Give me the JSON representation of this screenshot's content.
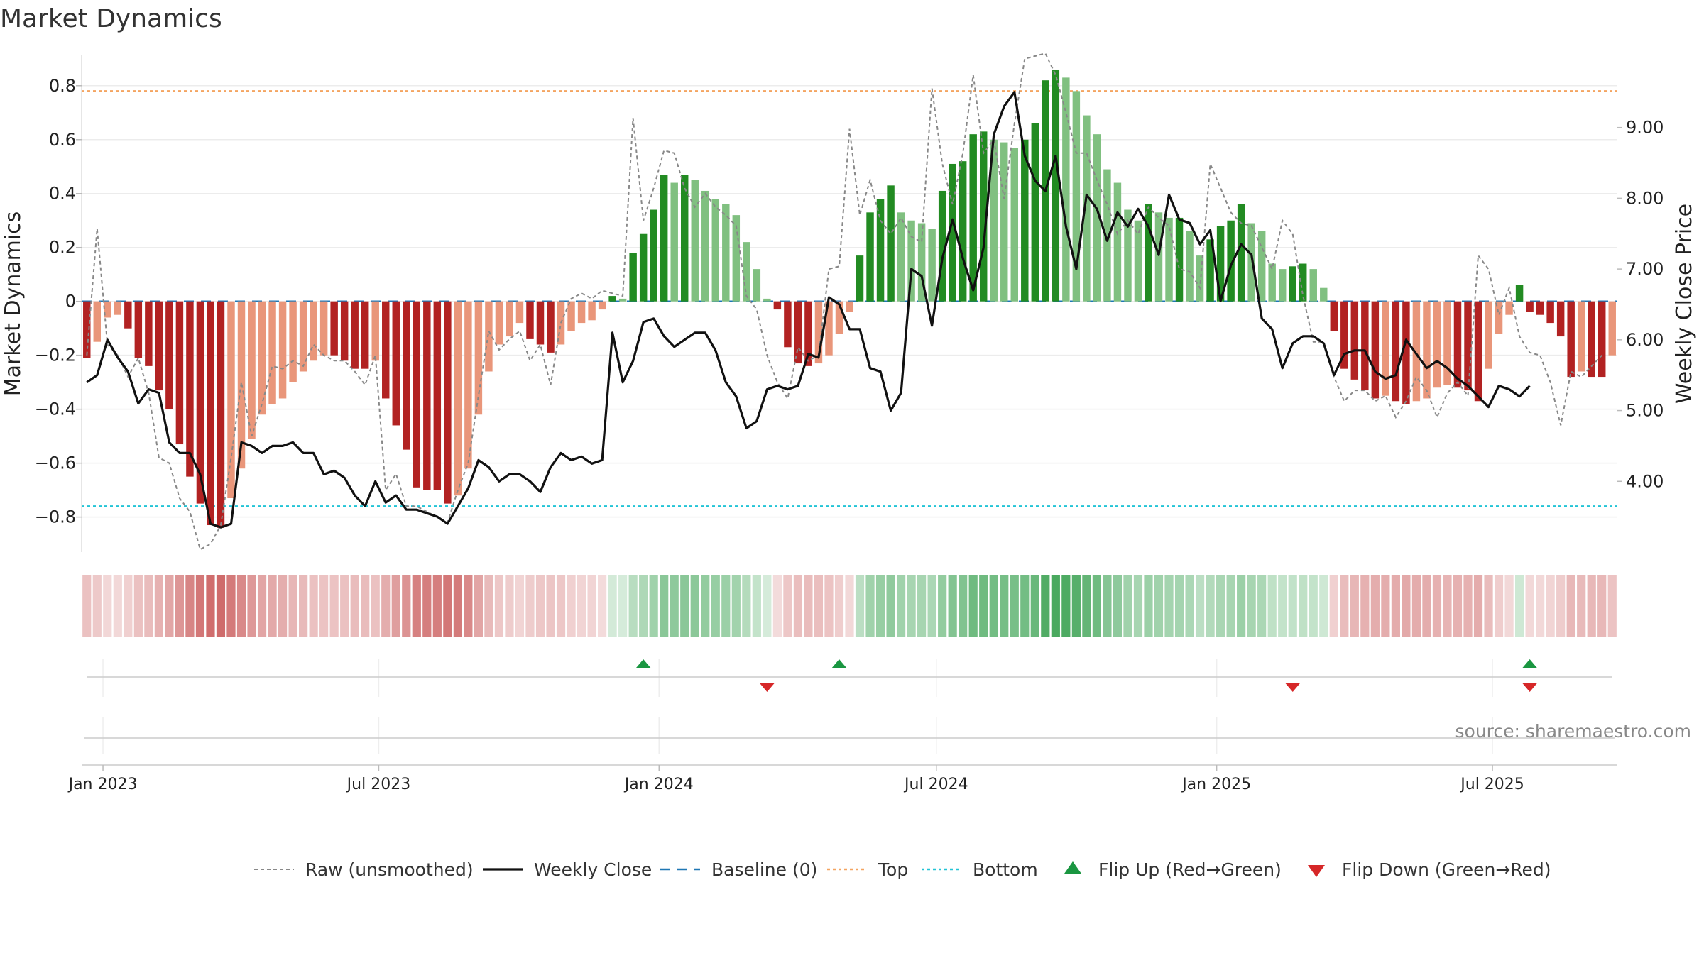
{
  "chart_data": {
    "type": "bar",
    "title": "Market Dynamics",
    "ylabel_left": "Market Dynamics",
    "ylabel_right": "Weekly Close Price",
    "source": "source: sharemaestro.com",
    "ylim_left": [
      -0.93,
      0.96
    ],
    "ylim_right": [
      3.0,
      10.2
    ],
    "yticks_left": [
      {
        "value": 0.8,
        "label": "0.8"
      },
      {
        "value": 0.6,
        "label": "0.6"
      },
      {
        "value": 0.4,
        "label": "0.4"
      },
      {
        "value": 0.2,
        "label": "0.2"
      },
      {
        "value": 0.0,
        "label": "0"
      },
      {
        "value": -0.2,
        "label": "−0.2"
      },
      {
        "value": -0.4,
        "label": "−0.4"
      },
      {
        "value": -0.6,
        "label": "−0.6"
      },
      {
        "value": -0.8,
        "label": "−0.8"
      }
    ],
    "yticks_right": [
      {
        "value": 9.0,
        "label": "9.00"
      },
      {
        "value": 8.0,
        "label": "8.00"
      },
      {
        "value": 7.0,
        "label": "7.00"
      },
      {
        "value": 6.0,
        "label": "6.00"
      },
      {
        "value": 5.0,
        "label": "5.00"
      },
      {
        "value": 4.0,
        "label": "4.00"
      }
    ],
    "xticks": [
      {
        "date": "2023-01-01",
        "label": "Jan 2023"
      },
      {
        "date": "2023-07-01",
        "label": "Jul 2023"
      },
      {
        "date": "2024-01-01",
        "label": "Jan 2024"
      },
      {
        "date": "2024-07-01",
        "label": "Jul 2024"
      },
      {
        "date": "2025-01-01",
        "label": "Jan 2025"
      },
      {
        "date": "2025-07-01",
        "label": "Jul 2025"
      }
    ],
    "x_start": "2022-12-18",
    "x_end": "2025-09-21",
    "top_line": 0.78,
    "bottom_line": -0.76,
    "baseline": 0,
    "grid": true,
    "legend_position": "bottom",
    "series": [
      {
        "name": "Market Dynamics",
        "values": [
          -0.21,
          -0.15,
          -0.06,
          -0.05,
          -0.1,
          -0.21,
          -0.24,
          -0.33,
          -0.4,
          -0.53,
          -0.65,
          -0.75,
          -0.83,
          -0.84,
          -0.73,
          -0.62,
          -0.51,
          -0.42,
          -0.38,
          -0.36,
          -0.3,
          -0.26,
          -0.22,
          -0.2,
          -0.2,
          -0.22,
          -0.25,
          -0.25,
          -0.22,
          -0.36,
          -0.46,
          -0.55,
          -0.69,
          -0.7,
          -0.7,
          -0.75,
          -0.72,
          -0.62,
          -0.42,
          -0.26,
          -0.16,
          -0.13,
          -0.08,
          -0.14,
          -0.16,
          -0.19,
          -0.16,
          -0.11,
          -0.08,
          -0.07,
          -0.03,
          0.02,
          0.01,
          0.18,
          0.25,
          0.34,
          0.47,
          0.44,
          0.47,
          0.45,
          0.41,
          0.38,
          0.36,
          0.32,
          0.22,
          0.12,
          0.01,
          -0.03,
          -0.17,
          -0.23,
          -0.24,
          -0.23,
          -0.2,
          -0.12,
          -0.04,
          0.17,
          0.33,
          0.38,
          0.43,
          0.33,
          0.3,
          0.29,
          0.27,
          0.41,
          0.51,
          0.52,
          0.62,
          0.63,
          0.6,
          0.59,
          0.57,
          0.6,
          0.66,
          0.82,
          0.86,
          0.83,
          0.78,
          0.69,
          0.62,
          0.49,
          0.44,
          0.34,
          0.3,
          0.36,
          0.33,
          0.31,
          0.31,
          0.26,
          0.17,
          0.23,
          0.28,
          0.3,
          0.36,
          0.29,
          0.26,
          0.14,
          0.12,
          0.13,
          0.14,
          0.12,
          0.05,
          -0.11,
          -0.25,
          -0.29,
          -0.33,
          -0.36,
          -0.35,
          -0.37,
          -0.38,
          -0.37,
          -0.36,
          -0.32,
          -0.31,
          -0.32,
          -0.33,
          -0.37,
          -0.25,
          -0.12,
          -0.05,
          0.06,
          -0.04,
          -0.05,
          -0.08,
          -0.13,
          -0.28,
          -0.26,
          -0.28,
          -0.28,
          -0.2
        ]
      },
      {
        "name": "Raw (unsmoothed)",
        "values": [
          -0.2,
          0.27,
          -0.16,
          -0.2,
          -0.28,
          -0.21,
          -0.34,
          -0.58,
          -0.6,
          -0.73,
          -0.78,
          -0.92,
          -0.9,
          -0.83,
          -0.58,
          -0.3,
          -0.5,
          -0.38,
          -0.24,
          -0.25,
          -0.22,
          -0.24,
          -0.16,
          -0.2,
          -0.22,
          -0.22,
          -0.26,
          -0.31,
          -0.2,
          -0.7,
          -0.64,
          -0.76,
          -0.76,
          -0.78,
          -0.8,
          -0.82,
          -0.7,
          -0.6,
          -0.35,
          -0.11,
          -0.18,
          -0.14,
          -0.11,
          -0.22,
          -0.16,
          -0.31,
          -0.08,
          0.01,
          0.03,
          0.01,
          0.04,
          0.03,
          0.02,
          0.68,
          0.3,
          0.42,
          0.56,
          0.55,
          0.42,
          0.35,
          0.4,
          0.35,
          0.32,
          0.28,
          0.02,
          -0.03,
          -0.2,
          -0.3,
          -0.36,
          -0.17,
          -0.22,
          -0.2,
          0.12,
          0.13,
          0.64,
          0.32,
          0.45,
          0.3,
          0.25,
          0.31,
          0.24,
          0.22,
          0.79,
          0.51,
          0.36,
          0.55,
          0.84,
          0.55,
          0.6,
          0.38,
          0.66,
          0.9,
          0.91,
          0.92,
          0.84,
          0.7,
          0.55,
          0.55,
          0.45,
          0.36,
          0.25,
          0.3,
          0.25,
          0.35,
          0.31,
          0.28,
          0.12,
          0.11,
          0.05,
          0.51,
          0.42,
          0.33,
          0.29,
          0.28,
          0.2,
          0.12,
          0.3,
          0.25,
          0.02,
          -0.15,
          -0.15,
          -0.28,
          -0.37,
          -0.33,
          -0.33,
          -0.37,
          -0.35,
          -0.43,
          -0.37,
          -0.28,
          -0.33,
          -0.43,
          -0.34,
          -0.3,
          -0.35,
          0.17,
          0.12,
          -0.05,
          0.05,
          -0.13,
          -0.19,
          -0.2,
          -0.3,
          -0.46,
          -0.26,
          -0.28,
          -0.24,
          -0.2
        ]
      },
      {
        "name": "Weekly Close",
        "values": [
          5.4,
          5.5,
          6.0,
          5.75,
          5.55,
          5.1,
          5.3,
          5.25,
          4.55,
          4.4,
          4.4,
          4.1,
          3.4,
          3.35,
          3.4,
          4.55,
          4.5,
          4.4,
          4.5,
          4.5,
          4.55,
          4.4,
          4.4,
          4.1,
          4.15,
          4.05,
          3.8,
          3.65,
          4.0,
          3.7,
          3.8,
          3.6,
          3.6,
          3.55,
          3.5,
          3.4,
          3.65,
          3.9,
          4.3,
          4.2,
          4.0,
          4.1,
          4.1,
          4.0,
          3.85,
          4.2,
          4.4,
          4.3,
          4.35,
          4.25,
          4.3,
          6.1,
          5.4,
          5.7,
          6.25,
          6.3,
          6.05,
          5.9,
          6.0,
          6.1,
          6.1,
          5.85,
          5.4,
          5.2,
          4.75,
          4.85,
          5.3,
          5.35,
          5.3,
          5.35,
          5.8,
          5.75,
          6.6,
          6.5,
          6.15,
          6.15,
          5.6,
          5.55,
          5.0,
          5.25,
          7.0,
          6.9,
          6.2,
          7.15,
          7.7,
          7.15,
          6.7,
          7.3,
          8.9,
          9.3,
          9.5,
          8.6,
          8.25,
          8.1,
          8.6,
          7.6,
          7.0,
          8.05,
          7.85,
          7.4,
          7.8,
          7.6,
          7.85,
          7.6,
          7.2,
          8.05,
          7.7,
          7.65,
          7.35,
          7.55,
          6.55,
          7.05,
          7.35,
          7.2,
          6.3,
          6.15,
          5.6,
          5.95,
          6.05,
          6.05,
          5.95,
          5.5,
          5.8,
          5.85,
          5.85,
          5.55,
          5.45,
          5.5,
          6.0,
          5.8,
          5.6,
          5.7,
          5.6,
          5.45,
          5.35,
          5.2,
          5.05,
          5.35,
          5.3,
          5.2,
          5.35
        ]
      }
    ],
    "flip_up_weeks": [
      54,
      73,
      140
    ],
    "flip_down_weeks": [
      66,
      117,
      140
    ],
    "legend": [
      {
        "label": "Raw (unsmoothed)",
        "style": "dashed-gray"
      },
      {
        "label": "Weekly Close",
        "style": "solid-black"
      },
      {
        "label": "Baseline (0)",
        "style": "dashed-blue"
      },
      {
        "label": "Top",
        "style": "dotted-orange"
      },
      {
        "label": "Bottom",
        "style": "dotted-cyan"
      },
      {
        "label": "Flip Up (Red→Green)",
        "style": "triangle-up-green"
      },
      {
        "label": "Flip Down (Green→Red)",
        "style": "triangle-down-red"
      }
    ]
  },
  "colors": {
    "strong_red": "#b22222",
    "light_red": "#e9967a",
    "strong_green": "#228b22",
    "light_green": "#80c080",
    "baseline": "#1f77b4",
    "top": "#f4a460",
    "bottom": "#22c4d6",
    "raw": "#888888",
    "close": "#111111",
    "flip_up": "#1a9641",
    "flip_down": "#d62728"
  }
}
